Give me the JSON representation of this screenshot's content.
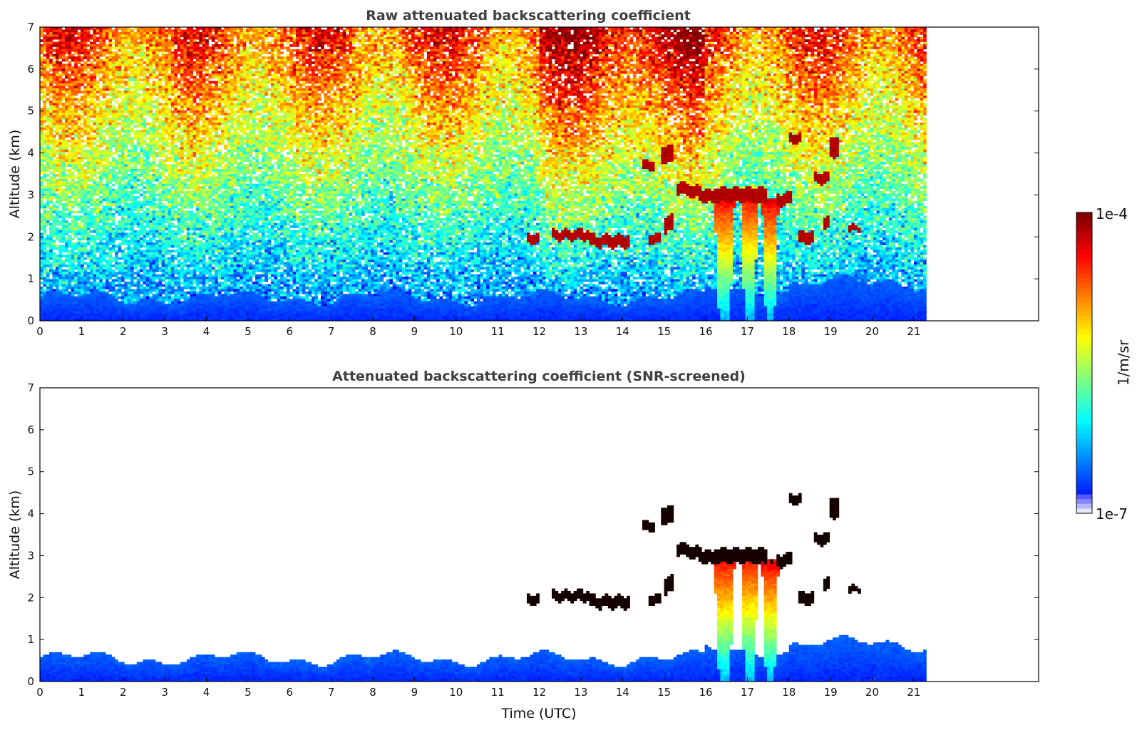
{
  "chart_data": [
    {
      "type": "heatmap",
      "title": "Raw attenuated backscattering coefficient",
      "xlabel": "",
      "ylabel": "Altitude (km)",
      "xlim": [
        0,
        24
      ],
      "ylim": [
        0,
        7
      ],
      "x_ticks": [
        0,
        1,
        2,
        3,
        4,
        5,
        6,
        7,
        8,
        9,
        10,
        11,
        12,
        13,
        14,
        15,
        16,
        17,
        18,
        19,
        20,
        21
      ],
      "y_ticks": [
        0,
        1,
        2,
        3,
        4,
        5,
        6,
        7
      ],
      "data_x_extent": [
        0,
        21.3
      ],
      "grid": false,
      "screened": false,
      "features": {
        "boundary_layer": {
          "top_km_range": [
            0.5,
            1.1
          ]
        },
        "convective_cloud_columns_utc": [
          16.4,
          17.0,
          17.6
        ],
        "elevated_layers": [
          {
            "x": [
              11.7,
              14.2
            ],
            "y_km": [
              1.8,
              2.2
            ]
          },
          {
            "x": [
              14.4,
              15.2
            ],
            "y_km": [
              3.6,
              4.1
            ]
          },
          {
            "x": [
              15.3,
              16.5
            ],
            "y_km": [
              2.8,
              3.4
            ]
          },
          {
            "x": [
              18.0,
              19.2
            ],
            "y_km": [
              3.3,
              4.4
            ]
          },
          {
            "x": [
              18.2,
              19.7
            ],
            "y_km": [
              1.9,
              2.4
            ]
          }
        ]
      }
    },
    {
      "type": "heatmap",
      "title": "Attenuated backscattering coefficient (SNR-screened)",
      "xlabel": "Time (UTC)",
      "ylabel": "Altitude (km)",
      "xlim": [
        0,
        24
      ],
      "ylim": [
        0,
        7
      ],
      "x_ticks": [
        0,
        1,
        2,
        3,
        4,
        5,
        6,
        7,
        8,
        9,
        10,
        11,
        12,
        13,
        14,
        15,
        16,
        17,
        18,
        19,
        20,
        21
      ],
      "y_ticks": [
        0,
        1,
        2,
        3,
        4,
        5,
        6,
        7
      ],
      "data_x_extent": [
        0,
        21.3
      ],
      "grid": false,
      "screened": true
    }
  ],
  "colorbar": {
    "label": "1/m/sr",
    "max_label": "1e-4",
    "min_label": "1e-7",
    "min_value": 1e-07,
    "max_value": 0.0001,
    "scale": "log",
    "colormap": "jet",
    "orientation": "vertical",
    "placement": "right"
  }
}
